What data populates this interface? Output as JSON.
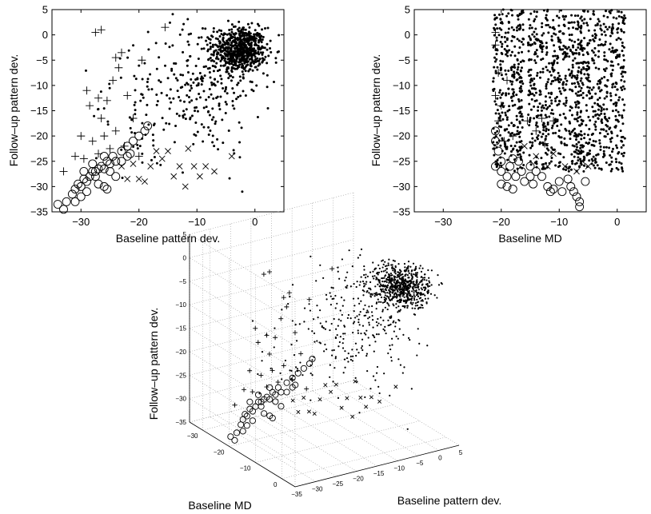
{
  "chart_data": [
    {
      "type": "scatter",
      "xlabel": "Baseline pattern dev.",
      "ylabel": "Follow–up pattern dev.",
      "xlim": [
        -35,
        5
      ],
      "ylim": [
        -35,
        5
      ],
      "xticks": [
        -30,
        -20,
        -10,
        0
      ],
      "yticks": [
        5,
        0,
        -5,
        -10,
        -15,
        -20,
        -25,
        -30,
        -35
      ],
      "grid": false,
      "series": [
        {
          "marker": "dot",
          "clusters": [
            {
              "cx": -2.5,
              "cy": -3,
              "sx": 2.2,
              "sy": 2.2,
              "n": 650
            },
            {
              "cx": -9,
              "cy": -10,
              "sx": 5,
              "sy": 7,
              "n": 260
            },
            {
              "cx": -20,
              "cy": -15,
              "sx": 4,
              "sy": 6,
              "n": 60
            }
          ]
        },
        {
          "marker": "circle",
          "points": [
            [
              -34,
              -33.5
            ],
            [
              -33,
              -34.5
            ],
            [
              -32.5,
              -33
            ],
            [
              -31.5,
              -31.5
            ],
            [
              -31,
              -30.5
            ],
            [
              -30.5,
              -29.5
            ],
            [
              -30,
              -30
            ],
            [
              -29.5,
              -28.5
            ],
            [
              -29,
              -29
            ],
            [
              -28.5,
              -28
            ],
            [
              -28,
              -27
            ],
            [
              -27.5,
              -28
            ],
            [
              -27,
              -26.5
            ],
            [
              -26.5,
              -26
            ],
            [
              -26,
              -26.5
            ],
            [
              -25.5,
              -25
            ],
            [
              -25,
              -25.5
            ],
            [
              -24.5,
              -24
            ],
            [
              -24,
              -25
            ],
            [
              -23,
              -23
            ],
            [
              -22,
              -22
            ],
            [
              -21,
              -21
            ],
            [
              -20,
              -20
            ],
            [
              -19,
              -19
            ],
            [
              -18.5,
              -18
            ],
            [
              -26,
              -30
            ],
            [
              -27,
              -29.5
            ],
            [
              -29,
              -31
            ],
            [
              -30,
              -32
            ],
            [
              -31,
              -33
            ],
            [
              -24,
              -28
            ],
            [
              -25,
              -27
            ],
            [
              -28,
              -25.5
            ],
            [
              -26,
              -24
            ],
            [
              -27.5,
              -27
            ],
            [
              -29.5,
              -27
            ],
            [
              -23,
              -25
            ],
            [
              -25.5,
              -30.5
            ],
            [
              -22,
              -24
            ],
            [
              -21.5,
              -23.5
            ]
          ]
        },
        {
          "marker": "plus",
          "points": [
            [
              -27.5,
              0.5
            ],
            [
              -26.5,
              1
            ],
            [
              -24,
              -4.5
            ],
            [
              -23.5,
              -6.5
            ],
            [
              -23,
              -3.5
            ],
            [
              -19.5,
              -5
            ],
            [
              -15.5,
              1.5
            ],
            [
              -29,
              -11
            ],
            [
              -28.5,
              -14
            ],
            [
              -27,
              -12.5
            ],
            [
              -26.5,
              -16.5
            ],
            [
              -25.5,
              -13
            ],
            [
              -24.5,
              -9
            ],
            [
              -22,
              -12
            ],
            [
              -21,
              -16.5
            ],
            [
              -30,
              -20
            ],
            [
              -29.5,
              -24.5
            ],
            [
              -31,
              -24
            ],
            [
              -33,
              -27
            ],
            [
              -28,
              -21
            ],
            [
              -26,
              -20
            ],
            [
              -22.5,
              -22
            ],
            [
              -20,
              -24
            ],
            [
              -24,
              -19
            ],
            [
              -25,
              -22.5
            ],
            [
              -27,
              -23.5
            ]
          ]
        },
        {
          "marker": "cross",
          "points": [
            [
              -23,
              -26
            ],
            [
              -21,
              -25.5
            ],
            [
              -20,
              -28.5
            ],
            [
              -18,
              -26
            ],
            [
              -16,
              -24.5
            ],
            [
              -15,
              -23
            ],
            [
              -14,
              -28
            ],
            [
              -13,
              -26
            ],
            [
              -12,
              -30
            ],
            [
              -10.5,
              -26
            ],
            [
              -8.5,
              -26
            ],
            [
              -7,
              -27
            ],
            [
              -4,
              -24
            ],
            [
              -22,
              -28.5
            ],
            [
              -19,
              -29
            ],
            [
              -17,
              -23
            ],
            [
              -11.5,
              -22.5
            ],
            [
              -9.5,
              -28
            ]
          ]
        }
      ]
    },
    {
      "type": "scatter",
      "xlabel": "Baseline MD",
      "ylabel": "Follow–up pattern dev.",
      "xlim": [
        -35,
        5
      ],
      "ylim": [
        -35,
        5
      ],
      "xticks": [
        -30,
        -20,
        -10,
        0
      ],
      "yticks": [
        5,
        0,
        -5,
        -10,
        -15,
        -20,
        -25,
        -30,
        -35
      ],
      "grid": false,
      "series": [
        {
          "marker": "dot",
          "columns": [
            -21,
            -20,
            -19,
            -18,
            -17,
            -16.5,
            -15,
            -14,
            -13,
            -12,
            -11,
            -10,
            -9,
            -8,
            -7,
            -6.5,
            -6,
            -5,
            -4,
            -3,
            -2,
            -1,
            0,
            1
          ],
          "yrange": [
            -27,
            5
          ]
        },
        {
          "marker": "circle",
          "points": [
            [
              -21,
              -21
            ],
            [
              -21,
              -19
            ],
            [
              -20.5,
              -23
            ],
            [
              -20,
              -25
            ],
            [
              -20,
              -27
            ],
            [
              -19,
              -28
            ],
            [
              -19,
              -30
            ],
            [
              -18.5,
              -26
            ],
            [
              -18,
              -24.5
            ],
            [
              -17,
              -25
            ],
            [
              -16.5,
              -27
            ],
            [
              -16,
              -29
            ],
            [
              -15,
              -26
            ],
            [
              -15,
              -28
            ],
            [
              -14.5,
              -29.5
            ],
            [
              -14,
              -27
            ],
            [
              -12,
              -30
            ],
            [
              -11.5,
              -31
            ],
            [
              -11,
              -30.5
            ],
            [
              -10,
              -29
            ],
            [
              -9.5,
              -31
            ],
            [
              -8,
              -30
            ],
            [
              -7.5,
              -31
            ],
            [
              -7,
              -32
            ],
            [
              -6.5,
              -33
            ],
            [
              -6.5,
              -34
            ],
            [
              -8.5,
              -28.5
            ],
            [
              -13,
              -28
            ],
            [
              -17.5,
              -28
            ],
            [
              -18,
              -30.5
            ],
            [
              -20,
              -29.5
            ],
            [
              -21,
              -26
            ],
            [
              -5.5,
              -29
            ]
          ]
        },
        {
          "marker": "plus",
          "points": [
            [
              -21,
              0.5
            ],
            [
              -21,
              -2
            ],
            [
              -20.5,
              -7.5
            ],
            [
              -21,
              -12
            ],
            [
              -20,
              -14
            ],
            [
              -20.5,
              -17
            ],
            [
              -19,
              -9
            ],
            [
              -15.5,
              -17
            ],
            [
              -14,
              -19
            ],
            [
              -13,
              -16.5
            ],
            [
              -11,
              -17
            ],
            [
              -12.5,
              -21.5
            ],
            [
              -19.5,
              -21
            ],
            [
              -18,
              -20
            ]
          ]
        },
        {
          "marker": "cross",
          "points": [
            [
              -16,
              -22
            ],
            [
              -14,
              -24
            ],
            [
              -12,
              -26
            ],
            [
              -11,
              -23.5
            ],
            [
              -9,
              -26
            ],
            [
              -7,
              -27
            ],
            [
              -6,
              -25
            ],
            [
              -5,
              -26
            ]
          ]
        }
      ]
    },
    {
      "type": "scatter",
      "subtype": "scatter3d",
      "xlabel": "Baseline MD",
      "ylabel": "Baseline pattern dev.",
      "zlabel": "Follow–up pattern dev.",
      "xlim": [
        -35,
        5
      ],
      "ylim": [
        -35,
        5
      ],
      "zlim": [
        -35,
        5
      ],
      "xticks": [
        -30,
        -20,
        -10,
        0
      ],
      "yticks": [
        -35,
        -30,
        -25,
        -20,
        -15,
        -10,
        -5,
        0,
        5
      ],
      "zticks": [
        5,
        0,
        -5,
        -10,
        -15,
        -20,
        -25,
        -30,
        -35
      ],
      "grid": true
    }
  ]
}
